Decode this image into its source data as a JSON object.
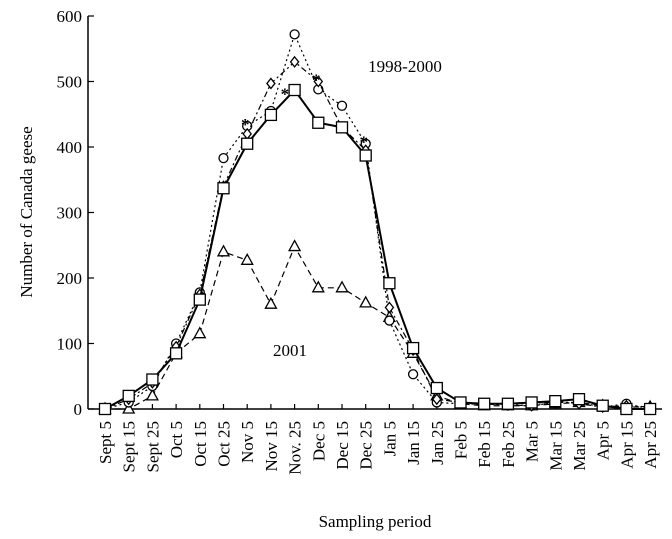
{
  "chart_data": {
    "type": "line",
    "y_label": "Number of Canada geese",
    "x_label": "Sampling period",
    "categories": [
      "Sept 5",
      "Sept 15",
      "Sept 25",
      "Oct 5",
      "Oct 15",
      "Oct 25",
      "Nov 5",
      "Nov 15",
      "Nov. 25",
      "Dec 5",
      "Dec 15",
      "Dec 25",
      "Jan 5",
      "Jan 15",
      "Jan 25",
      "Feb 5",
      "Feb 15",
      "Feb 25",
      "Mar 5",
      "Mar 15",
      "Mar 25",
      "Apr 5",
      "Apr 15",
      "Apr 25"
    ],
    "series": [
      {
        "marker": "triangle",
        "dash": "6,4",
        "color": "#000000",
        "values": [
          0,
          0,
          20,
          85,
          115,
          240,
          227,
          160,
          248,
          185,
          185,
          162,
          140,
          85,
          20,
          8,
          5,
          5,
          5,
          8,
          10,
          5,
          3,
          3
        ]
      },
      {
        "marker": "circle",
        "dash": "2,3",
        "color": "#000000",
        "values": [
          0,
          10,
          35,
          100,
          178,
          383,
          432,
          455,
          572,
          488,
          463,
          405,
          135,
          53,
          10,
          8,
          7,
          7,
          5,
          10,
          10,
          3,
          8,
          0
        ]
      },
      {
        "marker": "diamond",
        "dash": "6,3,2,3",
        "color": "#000000",
        "values": [
          0,
          15,
          40,
          95,
          175,
          340,
          420,
          497,
          530,
          500,
          430,
          395,
          155,
          90,
          15,
          10,
          8,
          6,
          5,
          12,
          8,
          3,
          5,
          3
        ]
      },
      {
        "marker": "square",
        "dash": "none",
        "color": "#000000",
        "values": [
          0,
          20,
          45,
          85,
          167,
          337,
          405,
          449,
          487,
          437,
          430,
          387,
          192,
          93,
          32,
          10,
          8,
          8,
          10,
          12,
          15,
          5,
          0,
          0
        ]
      }
    ],
    "annotations": [
      {
        "text": "1998-2000"
      },
      {
        "text": "2001"
      },
      {
        "text": "*",
        "x": "Nov 5"
      },
      {
        "text": "*",
        "x": "Nov 15"
      },
      {
        "text": "*",
        "x": "Dec 5"
      },
      {
        "text": "*",
        "x": "Dec 25"
      }
    ],
    "ylim": [
      0,
      600
    ],
    "yticks": [
      0,
      100,
      200,
      300,
      400,
      500,
      600
    ],
    "grid": false
  }
}
